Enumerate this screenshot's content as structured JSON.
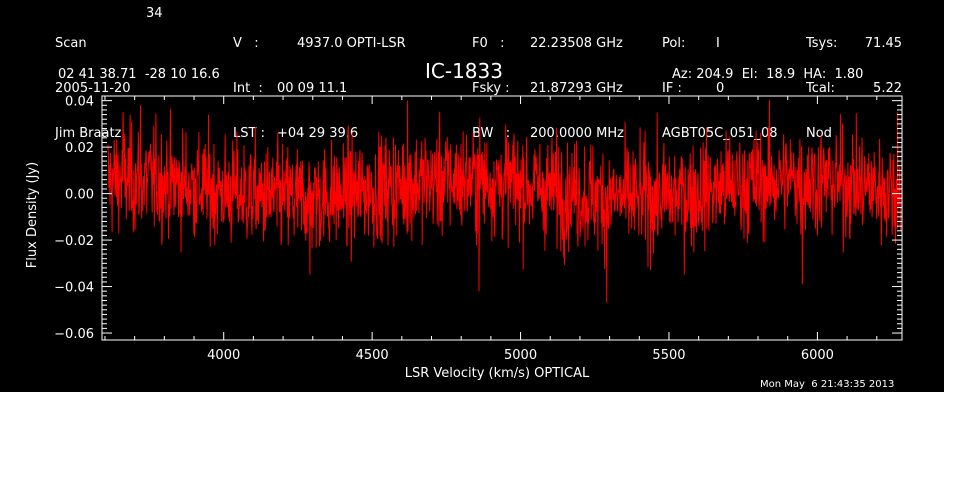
{
  "header": {
    "col1": [
      "Scan",
      "2005-11-20",
      "Jim Braatz"
    ],
    "scan_number": "34",
    "col2": [
      "V   :",
      "Int  :",
      "LST :"
    ],
    "col2_values": [
      "4937.0 OPTI-LSR",
      "00 09 11.1",
      "+04 29 39.6"
    ],
    "col3": [
      "F0   :",
      "Fsky :",
      "BW   :"
    ],
    "col3_values": [
      "22.23508 GHz",
      "21.87293 GHz",
      "200.0000 MHz"
    ],
    "col4": [
      "Pol:",
      "IF :",
      "AGBT05C_051_08"
    ],
    "col4_values": [
      "I",
      "0",
      ""
    ],
    "col5": [
      "Tsys:",
      "Tcal:",
      "Nod"
    ],
    "col5_values": [
      "71.45",
      "5.22",
      ""
    ],
    "coords": "02 41 38.71  -28 10 16.6",
    "source": "IC-1833",
    "az_el_ha": "Az: 204.9  El:  18.9  HA:  1.80",
    "timestamp": "Mon May  6 21:43:35 2013"
  },
  "chart_data": {
    "type": "line",
    "title": "IC-1833",
    "xlabel": "LSR Velocity (km/s) OPTICAL",
    "ylabel": "Flux Density (Jy)",
    "xlim": [
      3590,
      6285
    ],
    "ylim": [
      -0.063,
      0.042
    ],
    "xticks": [
      4000,
      4500,
      5000,
      5500,
      6000
    ],
    "yticks": [
      -0.06,
      -0.04,
      -0.02,
      0.0,
      0.02,
      0.04
    ],
    "ytick_labels": [
      "−0.06",
      "−0.04",
      "−0.02",
      "0.00",
      "0.02",
      "0.04"
    ],
    "series": [
      {
        "color": "#ff0000",
        "x_start": 3610,
        "x_end": 6280,
        "n_points": 1900,
        "rms": 0.0115,
        "mean": 0.002,
        "features": [
          {
            "x": 3720,
            "y": 0.038
          },
          {
            "x": 4620,
            "y": 0.04
          },
          {
            "x": 5290,
            "y": -0.047
          },
          {
            "x": 4860,
            "y": -0.042
          },
          {
            "x": 5950,
            "y": -0.039
          },
          {
            "x": 6270,
            "y": 0.035
          },
          {
            "x": 3660,
            "y": 0.035
          },
          {
            "x": 4290,
            "y": -0.035
          }
        ]
      }
    ],
    "grid": false,
    "legend": "none"
  },
  "colors": {
    "background": "#000000",
    "axes": "#ffffff",
    "line": "#ff0000"
  }
}
